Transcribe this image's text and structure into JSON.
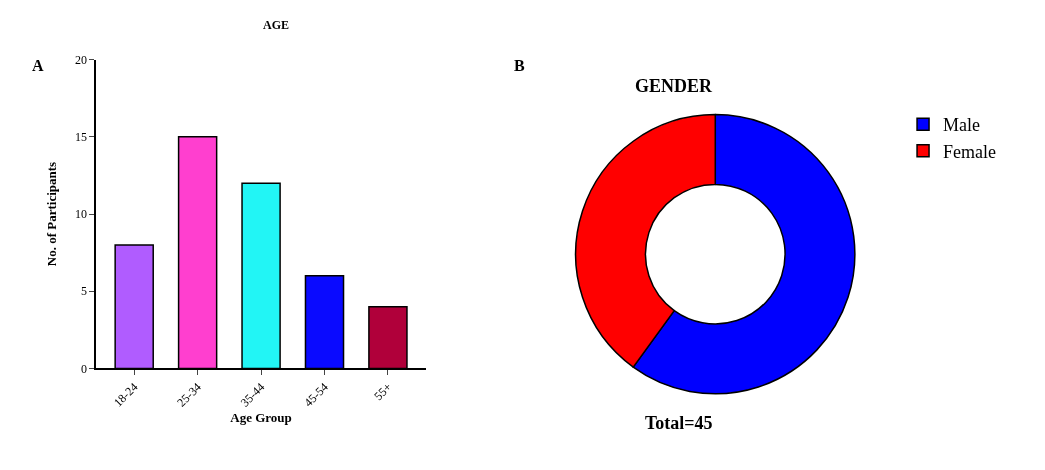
{
  "chart_data": [
    {
      "type": "bar",
      "title": "AGE",
      "xlabel": "Age Group",
      "ylabel": "No. of Participants",
      "annotations": [
        "A"
      ],
      "categories": [
        "18-24",
        "25-34",
        "35-44",
        "45-54",
        "55+"
      ],
      "values": [
        8,
        15,
        12,
        6,
        4
      ],
      "colors": [
        "#b05cff",
        "#ff3fcf",
        "#22f5f5",
        "#0a0aff",
        "#b0003a"
      ],
      "ylim": [
        0,
        20
      ],
      "yticks": [
        0,
        5,
        10,
        15,
        20
      ],
      "legend": false
    },
    {
      "type": "donut",
      "title": "GENDER",
      "annotations": [
        "B",
        "Total=45"
      ],
      "categories": [
        "Male",
        "Female"
      ],
      "values": [
        60,
        40
      ],
      "colors": [
        "#0000ff",
        "#ff0000"
      ],
      "legend": "right"
    }
  ]
}
